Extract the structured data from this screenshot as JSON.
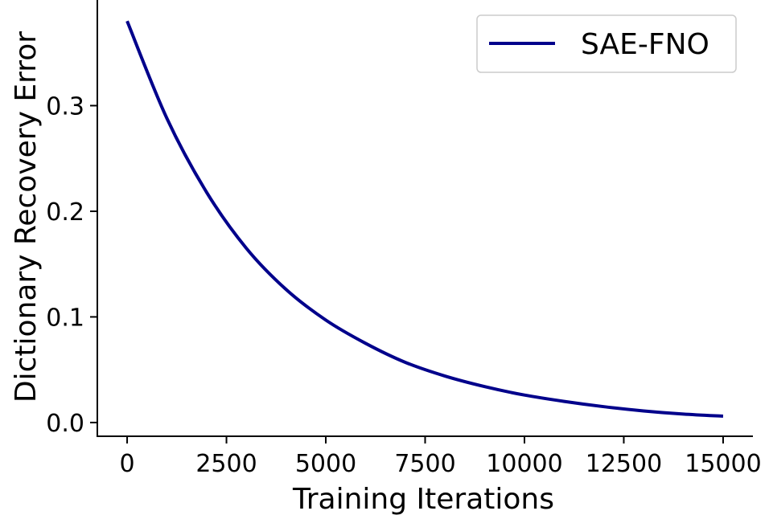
{
  "chart_data": {
    "type": "line",
    "title": "",
    "xlabel": "Training Iterations",
    "ylabel": "Dictionary Recovery Error",
    "xlim": [
      -750,
      15750
    ],
    "ylim": [
      -0.013,
      0.4
    ],
    "xticks": [
      0,
      2500,
      5000,
      7500,
      10000,
      12500,
      15000
    ],
    "xtick_labels": [
      "0",
      "2500",
      "5000",
      "7500",
      "10000",
      "12500",
      "15000"
    ],
    "yticks": [
      0.0,
      0.1,
      0.2,
      0.3
    ],
    "ytick_labels": [
      "0.0",
      "0.1",
      "0.2",
      "0.3"
    ],
    "grid": false,
    "legend": {
      "placement": "top-right"
    },
    "series": [
      {
        "name": "SAE-FNO",
        "color": "#00008b",
        "x": [
          0,
          1000,
          2000,
          3000,
          4000,
          5000,
          6000,
          7000,
          8000,
          9000,
          10000,
          11000,
          12000,
          13000,
          14000,
          15000
        ],
        "y": [
          0.38,
          0.288,
          0.218,
          0.165,
          0.126,
          0.097,
          0.075,
          0.057,
          0.044,
          0.034,
          0.026,
          0.02,
          0.015,
          0.011,
          0.008,
          0.006
        ]
      }
    ]
  }
}
